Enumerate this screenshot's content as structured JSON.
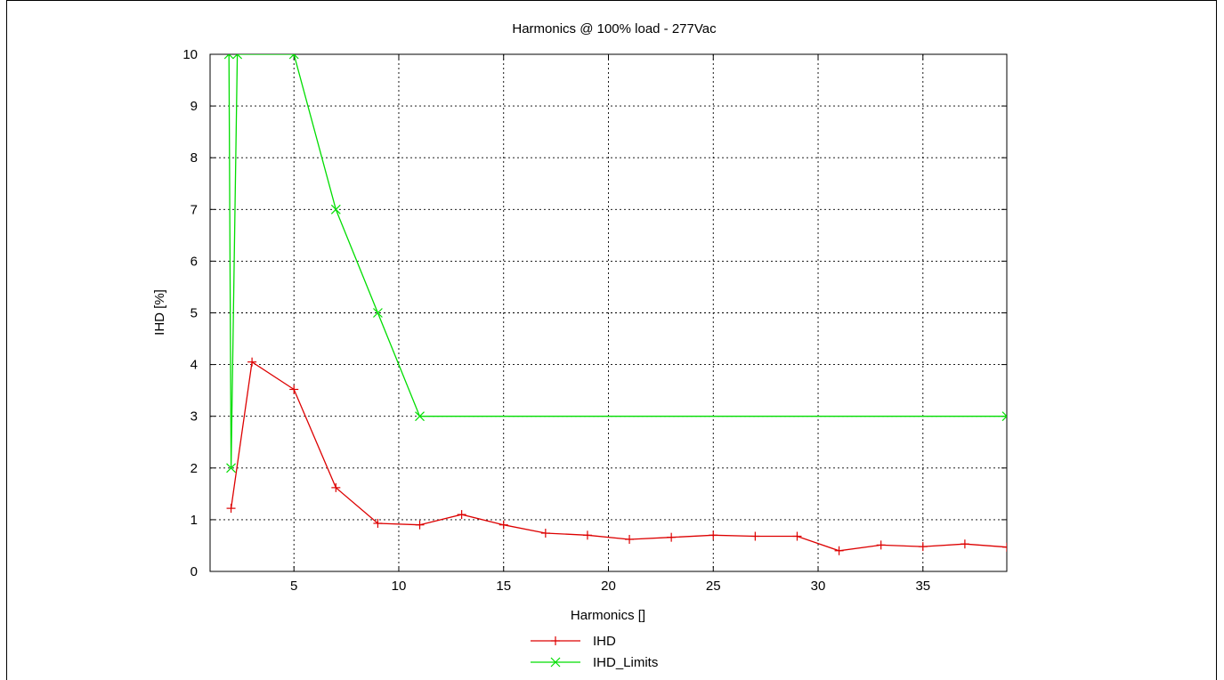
{
  "chart_data": {
    "type": "line",
    "title": "Harmonics @ 100% load - 277Vac",
    "xlabel": "Harmonics []",
    "ylabel": "IHD [%]",
    "xlim": [
      1,
      39
    ],
    "ylim": [
      0,
      10
    ],
    "x_ticks": [
      5,
      10,
      15,
      20,
      25,
      30,
      35
    ],
    "y_ticks": [
      0,
      1,
      2,
      3,
      4,
      5,
      6,
      7,
      8,
      9,
      10
    ],
    "grid": true,
    "legend_position": "bottom-center",
    "series": [
      {
        "name": "IHD",
        "color": "#dd0000",
        "marker": "plus",
        "x": [
          2,
          3,
          5,
          7,
          9,
          11,
          13,
          15,
          17,
          19,
          21,
          23,
          25,
          27,
          29,
          31,
          33,
          35,
          37,
          39
        ],
        "y": [
          1.22,
          4.05,
          3.52,
          1.62,
          0.93,
          0.9,
          1.1,
          0.9,
          0.74,
          0.7,
          0.62,
          0.66,
          0.7,
          0.68,
          0.68,
          0.4,
          0.51,
          0.48,
          0.53,
          0.47
        ]
      },
      {
        "name": "IHD_Limits",
        "color": "#00dd00",
        "marker": "x",
        "x": [
          1.9,
          2,
          2.3,
          5,
          7,
          9,
          11,
          39
        ],
        "y": [
          10,
          2,
          10,
          10,
          7,
          5,
          3,
          3
        ]
      }
    ]
  }
}
